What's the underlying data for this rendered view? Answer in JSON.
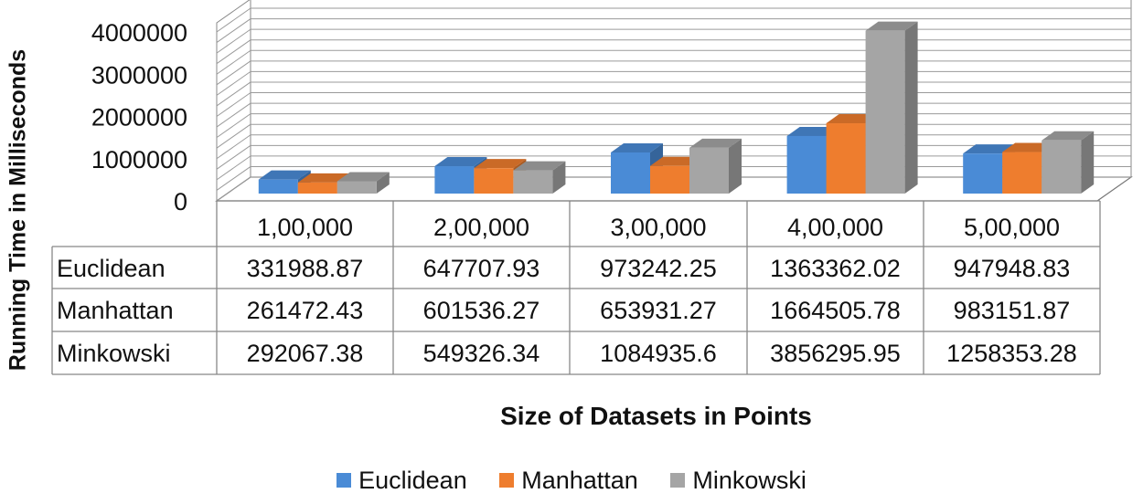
{
  "chart_data": {
    "type": "bar",
    "categories": [
      "1,00,000",
      "2,00,000",
      "3,00,000",
      "4,00,000",
      "5,00,000"
    ],
    "series": [
      {
        "name": "Euclidean",
        "values": [
          331988.87,
          647707.93,
          973242.25,
          1363362.02,
          947948.83
        ],
        "labels": [
          "331988.87",
          "647707.93",
          "973242.25",
          "1363362.02",
          "947948.83"
        ],
        "color": "#4a8bd6"
      },
      {
        "name": "Manhattan",
        "values": [
          261472.43,
          601536.27,
          653931.27,
          1664505.78,
          983151.87
        ],
        "labels": [
          "261472.43",
          "601536.27",
          "653931.27",
          "1664505.78",
          "983151.87"
        ],
        "color": "#ee7d2e"
      },
      {
        "name": "Minkowski",
        "values": [
          292067.38,
          549326.34,
          1084935.6,
          3856295.95,
          1258353.28
        ],
        "labels": [
          "292067.38",
          "549326.34",
          "1084935.6",
          "3856295.95",
          "1258353.28"
        ],
        "color": "#a5a5a5"
      }
    ],
    "xlabel": "Size of Datasets in Points",
    "ylabel": "Running Time in Milliseconds",
    "ylim": [
      0,
      4000000
    ],
    "yticks": [
      "0",
      "1000000",
      "2000000",
      "3000000",
      "4000000"
    ],
    "grid": true,
    "legend_position": "bottom",
    "data_table": true
  }
}
